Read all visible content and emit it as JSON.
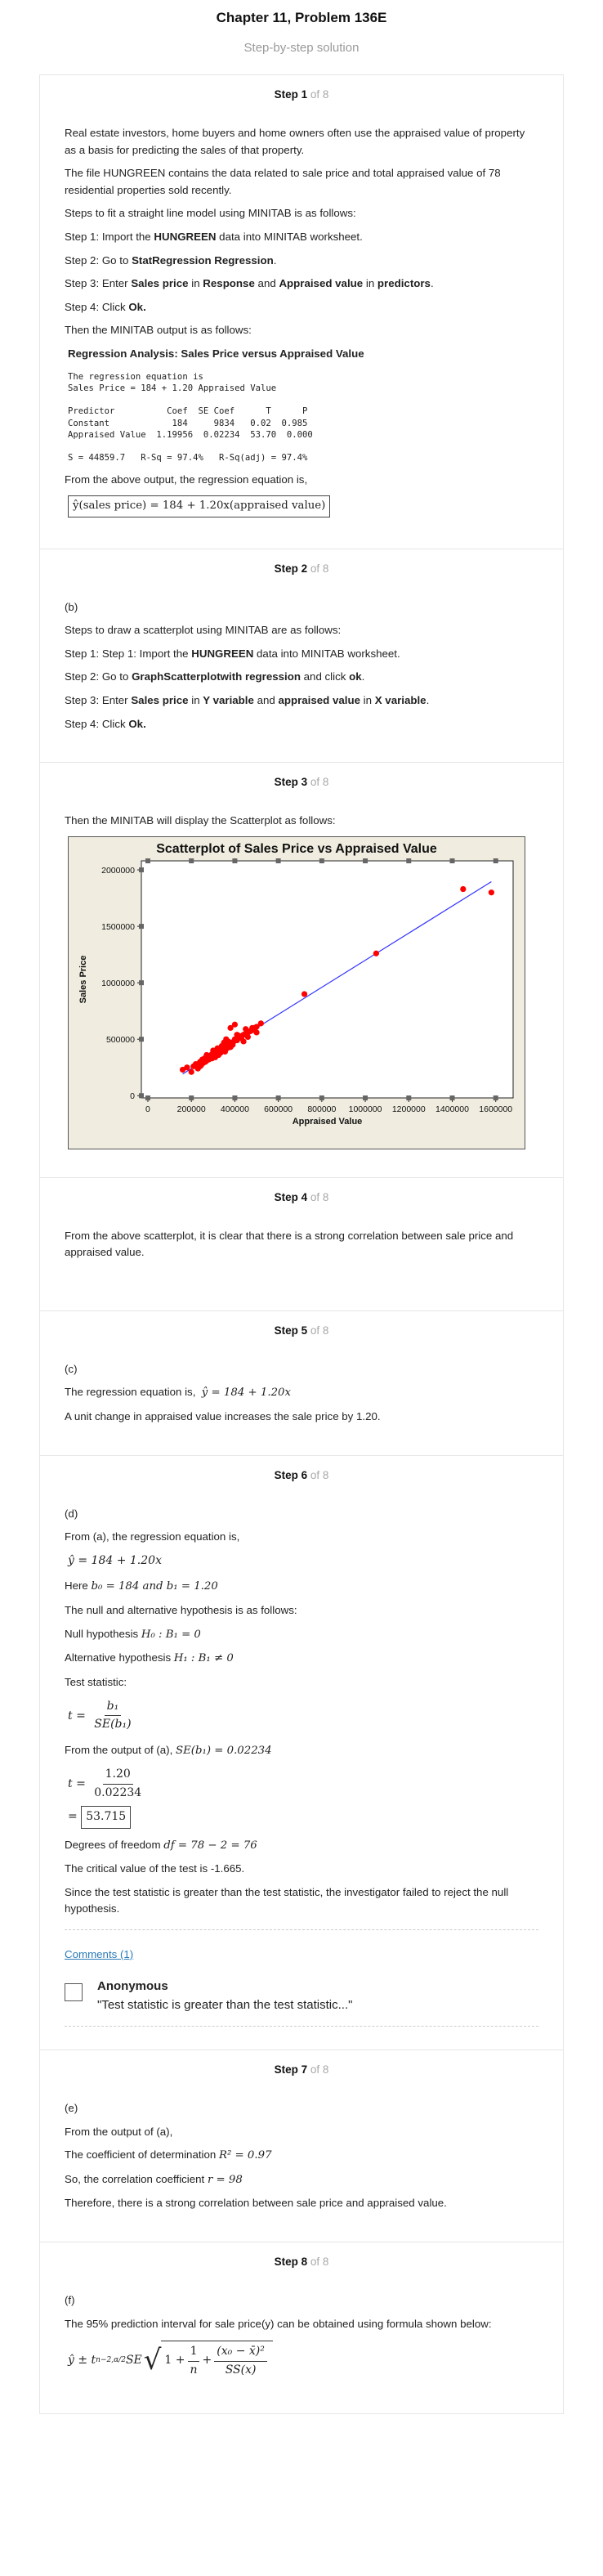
{
  "header": {
    "title": "Chapter 11, Problem 136E",
    "subtitle": "Step-by-step solution"
  },
  "steps": [
    {
      "label": "Step 1",
      "of": " of 8"
    },
    {
      "label": "Step 2",
      "of": " of 8"
    },
    {
      "label": "Step 3",
      "of": " of 8"
    },
    {
      "label": "Step 4",
      "of": " of 8"
    },
    {
      "label": "Step 5",
      "of": " of 8"
    },
    {
      "label": "Step 6",
      "of": " of 8"
    },
    {
      "label": "Step 7",
      "of": " of 8"
    },
    {
      "label": "Step 8",
      "of": " of 8"
    }
  ],
  "step1": {
    "p1": "Real estate investors, home buyers and home owners often use the appraised value of property as a basis for predicting the sales of that property.",
    "p2": "The file HUNGREEN contains the data related to sale price and total appraised value of 78 residential properties sold recently.",
    "p3": "Steps to fit a straight line model using MINITAB is as follows:",
    "s1a": "Step 1: Import the ",
    "s1b": "HUNGREEN",
    "s1c": " data into MINITAB worksheet.",
    "s2a": "Step 2: Go to ",
    "s2b": "StatRegression Regression",
    "s2c": ".",
    "s3a": "Step 3: Enter ",
    "s3b": "Sales price",
    "s3c": " in ",
    "s3d": "Response",
    "s3e": " and ",
    "s3f": "Appraised value",
    "s3g": " in ",
    "s3h": "predictors",
    "s3i": ".",
    "s4a": "Step 4: Click ",
    "s4b": "Ok.",
    "p4": "Then the MINITAB output is as follows:",
    "reg_title": "Regression Analysis: Sales Price versus Appraised Value",
    "output1": "The regression equation is\nSales Price = 184 + 1.20 Appraised Value",
    "output2": "Predictor          Coef  SE Coef      T      P\nConstant            184     9834   0.02  0.985\nAppraised Value  1.19956  0.02234  53.70  0.000",
    "output3": "S = 44859.7   R-Sq = 97.4%   R-Sq(adj) = 97.4%",
    "p5": "From the above output, the regression equation is,",
    "eq_box": "ŷ(sales price) = 184 + 1.20x(appraised value)"
  },
  "step2": {
    "label": "(b)",
    "p1": "Steps to draw a scatterplot using MINITAB are as follows:",
    "s1a": "Step 1: Step 1: Import the ",
    "s1b": "HUNGREEN",
    "s1c": " data into MINITAB worksheet.",
    "s2a": "Step 2: Go to ",
    "s2b": "GraphScatterplotwith regression",
    "s2c": " and click ",
    "s2d": "ok",
    "s2e": ".",
    "s3a": "Step 3: Enter ",
    "s3b": "Sales price",
    "s3c": " in ",
    "s3d": "Y variable",
    "s3e": " and ",
    "s3f": "appraised value",
    "s3g": " in ",
    "s3h": "X variable",
    "s3i": ".",
    "s4a": "Step 4: Click ",
    "s4b": "Ok."
  },
  "step3": {
    "p1": "Then the MINITAB will display the Scatterplot as follows:"
  },
  "chart_data": {
    "type": "scatter",
    "title": "Scatterplot of Sales Price vs Appraised Value",
    "xlabel": "Appraised Value",
    "ylabel": "Sales Price",
    "xlim": [
      -30000,
      1680000
    ],
    "ylim": [
      -20000,
      2080000
    ],
    "xticks": [
      0,
      200000,
      400000,
      600000,
      800000,
      1000000,
      1200000,
      1400000,
      1600000
    ],
    "yticks": [
      0,
      500000,
      1000000,
      1500000,
      2000000
    ],
    "grid": false,
    "colors": {
      "points": "#ff0000",
      "line": "#3333ff",
      "frame": "#f0ede0",
      "plot": "#ffffff"
    },
    "regression_line": {
      "intercept": 184,
      "slope": 1.19956,
      "x_range": [
        160000,
        1580000
      ]
    },
    "series": [
      {
        "x": [
          160000,
          180000,
          200000,
          210000,
          220000,
          230000,
          240000,
          245000,
          250000,
          255000,
          260000,
          265000,
          270000,
          275000,
          280000,
          285000,
          290000,
          295000,
          300000,
          305000,
          310000,
          315000,
          320000,
          325000,
          330000,
          335000,
          340000,
          345000,
          350000,
          355000,
          360000,
          365000,
          370000,
          375000,
          380000,
          385000,
          390000,
          395000,
          400000,
          410000,
          420000,
          430000,
          440000,
          450000,
          460000,
          470000,
          480000,
          490000,
          500000,
          520000,
          380000,
          320000,
          300000,
          270000,
          250000,
          230000,
          350000,
          400000,
          440000,
          360000,
          290000,
          310000,
          330000,
          420000,
          460000,
          500000,
          340000,
          280000,
          260000,
          240000,
          720000,
          1050000,
          1450000,
          1580000,
          370000,
          410000,
          450000,
          480000
        ],
        "y": [
          230000,
          250000,
          210000,
          260000,
          280000,
          240000,
          300000,
          270000,
          320000,
          290000,
          330000,
          300000,
          310000,
          350000,
          320000,
          340000,
          360000,
          330000,
          380000,
          350000,
          340000,
          370000,
          390000,
          360000,
          410000,
          380000,
          400000,
          420000,
          430000,
          390000,
          450000,
          420000,
          440000,
          460000,
          430000,
          470000,
          450000,
          480000,
          500000,
          490000,
          520000,
          510000,
          540000,
          550000,
          560000,
          570000,
          580000,
          600000,
          610000,
          640000,
          600000,
          420000,
          400000,
          360000,
          310000,
          280000,
          470000,
          630000,
          480000,
          500000,
          330000,
          370000,
          410000,
          530000,
          520000,
          560000,
          440000,
          330000,
          300000,
          260000,
          900000,
          1260000,
          1830000,
          1800000,
          480000,
          540000,
          590000,
          600000
        ]
      }
    ]
  },
  "step4": {
    "p1": "From the above scatterplot, it is clear that there is a strong correlation between sale price and appraised value."
  },
  "step5": {
    "label": "(c)",
    "p1": "The regression equation is,",
    "eq": "ŷ = 184 + 1.20x",
    "p2": "A unit change in appraised value increases the sale price by 1.20."
  },
  "step6": {
    "label": "(d)",
    "p1": "From (a), the regression equation is,",
    "eq": "ŷ = 184 + 1.20x",
    "here_a": "Here ",
    "here_b": "b₀ = 184 and b₁ = 1.20",
    "p2": "The null and alternative hypothesis is as follows:",
    "null_a": "Null hypothesis ",
    "null_b": "H₀ : B₁ = 0",
    "alt_a": "Alternative hypothesis ",
    "alt_b": "H₁ : B₁ ≠ 0",
    "p3": "Test statistic:",
    "t_lhs": "t = ",
    "t_num": "b₁",
    "t_den": "SE(b₁)",
    "p4a": "From the output of (a), ",
    "p4b": "SE(b₁) = 0.02234",
    "t2_lhs": "t = ",
    "t2_num": "1.20",
    "t2_den": "0.02234",
    "t_eq": "= ",
    "t_val": "53.715",
    "df_a": "Degrees of freedom ",
    "df_b": "df = 78 − 2 = 76",
    "p5": "The critical value of the test is -1.665.",
    "p6": "Since the test statistic is greater than the test statistic, the investigator failed to reject the null hypothesis.",
    "comments_link": "Comments (1)",
    "comment_author": "Anonymous",
    "comment_text": "\"Test statistic is greater than the test statistic...\""
  },
  "step7": {
    "label": "(e)",
    "p1": "From the output of (a),",
    "p2a": "The coefficient of determination ",
    "p2b": "R² = 0.97",
    "p3a": "So, the correlation coefficient ",
    "p3b": "r = 98",
    "p4": "Therefore, there is a strong correlation between sale price and appraised value."
  },
  "step8": {
    "label": "(f)",
    "p1": "The 95% prediction interval for sale price(y) can be obtained using formula shown below:",
    "f_lhs": "ŷ ± t",
    "f_sub": "n−2,α/2",
    "f_se": "SE",
    "f_one": "1 +",
    "f_frac1_num": "1",
    "f_frac1_den": "n",
    "f_plus": "+",
    "f_frac2_num": "(x₀ − x̄)²",
    "f_frac2_den": "SS(x)"
  }
}
